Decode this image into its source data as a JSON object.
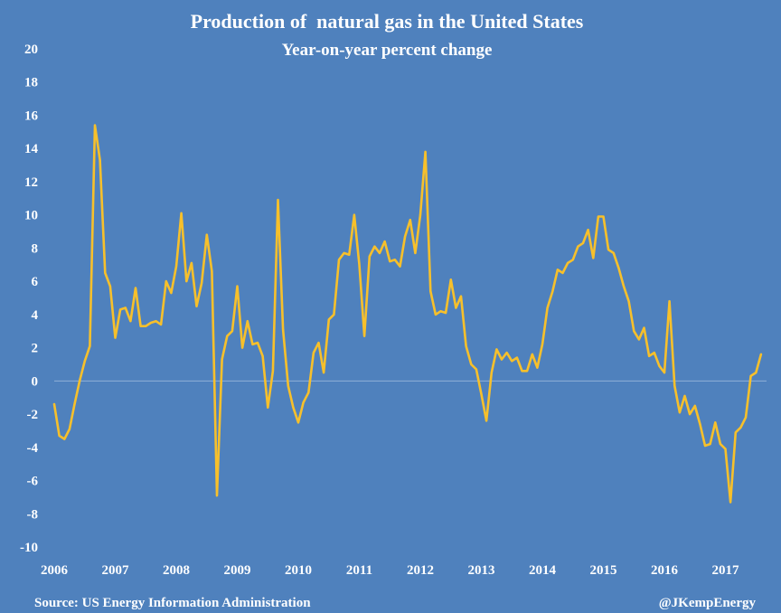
{
  "chart_data": {
    "type": "line",
    "title": "Production of  natural gas in the United States",
    "subtitle": "Year-on-year percent change",
    "xlabel": "",
    "ylabel": "",
    "ylim": [
      -10,
      20
    ],
    "y_ticks": [
      "20",
      "18",
      "16",
      "14",
      "12",
      "10",
      "8",
      "6",
      "4",
      "2",
      "0",
      "-2",
      "-4",
      "-6",
      "-8",
      "-10"
    ],
    "x_ticks": [
      "2006",
      "2007",
      "2008",
      "2009",
      "2010",
      "2011",
      "2012",
      "2013",
      "2014",
      "2015",
      "2016",
      "2017"
    ],
    "x_start": "2006-01",
    "x_interval": "monthly",
    "grid": false,
    "colors": {
      "background": "#4f81bd",
      "line": "#f7c02b",
      "text": "#ffffff",
      "zero_line": "#8fb0d8"
    },
    "series": [
      {
        "values": [
          -1.4,
          -3.3,
          -3.5,
          -2.9,
          -1.4,
          0.0,
          1.2,
          2.1,
          15.4,
          13.3,
          6.5,
          5.7,
          2.6,
          4.3,
          4.4,
          3.6,
          5.6,
          3.3,
          3.3,
          3.5,
          3.6,
          3.4,
          6.0,
          5.3,
          6.9,
          10.1,
          6.0,
          7.1,
          4.5,
          5.9,
          8.8,
          6.6,
          -6.9,
          1.3,
          2.7,
          3.0,
          5.7,
          2.0,
          3.6,
          2.2,
          2.3,
          1.5,
          -1.6,
          0.6,
          10.9,
          3.1,
          -0.3,
          -1.6,
          -2.5,
          -1.3,
          -0.7,
          1.7,
          2.3,
          0.5,
          3.7,
          4.0,
          7.3,
          7.7,
          7.6,
          10.0,
          7.0,
          2.7,
          7.5,
          8.1,
          7.7,
          8.4,
          7.2,
          7.3,
          6.9,
          8.7,
          9.7,
          7.7,
          10.0,
          13.8,
          5.4,
          4.0,
          4.2,
          4.1,
          6.1,
          4.4,
          5.1,
          2.1,
          1.0,
          0.7,
          -0.8,
          -2.4,
          0.5,
          1.9,
          1.3,
          1.7,
          1.2,
          1.4,
          0.6,
          0.6,
          1.6,
          0.8,
          2.2,
          4.4,
          5.4,
          6.7,
          6.5,
          7.1,
          7.3,
          8.1,
          8.3,
          9.1,
          7.4,
          9.9,
          9.9,
          7.9,
          7.7,
          6.8,
          5.7,
          4.8,
          3.0,
          2.5,
          3.2,
          1.5,
          1.7,
          0.9,
          0.5,
          4.8,
          -0.3,
          -1.9,
          -0.9,
          -2.0,
          -1.5,
          -2.6,
          -3.9,
          -3.8,
          -2.5,
          -3.8,
          -4.1,
          -7.3,
          -3.1,
          -2.8,
          -2.2,
          0.3,
          0.5,
          1.6
        ]
      }
    ]
  },
  "footer": {
    "source": "Source: US Energy Information Administration",
    "handle": "@JKempEnergy"
  }
}
